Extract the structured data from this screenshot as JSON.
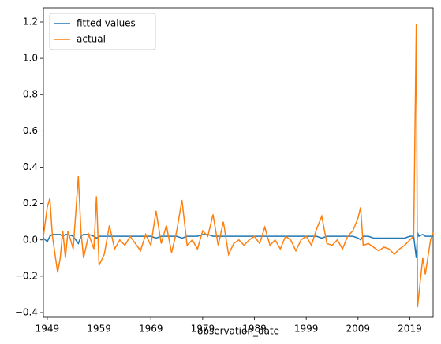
{
  "chart_data": {
    "type": "line",
    "x_label": "observation_date",
    "x": [
      1948.25,
      1949,
      1949.5,
      1950,
      1951,
      1951.5,
      1952,
      1952.5,
      1953,
      1954,
      1955,
      1955.5,
      1956,
      1957,
      1958,
      1958.5,
      1959,
      1960,
      1961,
      1962,
      1963,
      1964,
      1965,
      1966,
      1967,
      1968,
      1969,
      1970,
      1971,
      1972,
      1973,
      1974,
      1975,
      1976,
      1977,
      1978,
      1979,
      1980,
      1981,
      1982,
      1983,
      1984,
      1985,
      1986,
      1987,
      1988,
      1989,
      1990,
      1991,
      1992,
      1993,
      1994,
      1995,
      1996,
      1997,
      1998,
      1999,
      2000,
      2001,
      2002,
      2003,
      2004,
      2005,
      2006,
      2007,
      2008,
      2009,
      2009.5,
      2010,
      2011,
      2012,
      2013,
      2014,
      2015,
      2016,
      2017,
      2018,
      2019,
      2019.75,
      2020.25,
      2020.5,
      2020.75,
      2021.5,
      2022,
      2023,
      2023.5
    ],
    "series": [
      {
        "name": "fitted values",
        "color": "#1f77b4",
        "values": [
          0.01,
          -0.01,
          0.02,
          0.03,
          0.03,
          0.03,
          0.02,
          0.03,
          0.03,
          0.02,
          -0.02,
          0.02,
          0.03,
          0.03,
          0.02,
          0.01,
          0.02,
          0.02,
          0.02,
          0.02,
          0.02,
          0.02,
          0.02,
          0.02,
          0.02,
          0.02,
          0.02,
          0.01,
          0.02,
          0.02,
          0.02,
          0.02,
          0.01,
          0.02,
          0.02,
          0.02,
          0.03,
          0.03,
          0.02,
          0.02,
          0.02,
          0.02,
          0.02,
          0.02,
          0.02,
          0.02,
          0.02,
          0.02,
          0.02,
          0.02,
          0.02,
          0.02,
          0.02,
          0.02,
          0.02,
          0.02,
          0.02,
          0.02,
          0.02,
          0.01,
          0.02,
          0.02,
          0.02,
          0.02,
          0.02,
          0.02,
          0.01,
          0.0,
          0.02,
          0.02,
          0.01,
          0.01,
          0.01,
          0.01,
          0.01,
          0.01,
          0.01,
          0.02,
          0.02,
          -0.1,
          0.04,
          0.02,
          0.03,
          0.02,
          0.02,
          0.02
        ]
      },
      {
        "name": "actual",
        "color": "#ff7f0e",
        "values": [
          0.02,
          0.18,
          0.23,
          0.02,
          -0.18,
          -0.1,
          0.05,
          -0.1,
          0.05,
          -0.05,
          0.35,
          0.05,
          -0.1,
          0.03,
          -0.05,
          0.24,
          -0.14,
          -0.08,
          0.08,
          -0.05,
          0.0,
          -0.03,
          0.02,
          -0.02,
          -0.06,
          0.03,
          -0.03,
          0.16,
          -0.02,
          0.08,
          -0.07,
          0.05,
          0.22,
          -0.03,
          0.0,
          -0.05,
          0.05,
          0.02,
          0.14,
          -0.03,
          0.1,
          -0.08,
          -0.02,
          0.0,
          -0.03,
          0.0,
          0.02,
          -0.02,
          0.07,
          -0.03,
          0.0,
          -0.05,
          0.02,
          0.0,
          -0.06,
          0.0,
          0.02,
          -0.03,
          0.06,
          0.13,
          -0.02,
          -0.03,
          0.0,
          -0.05,
          0.02,
          0.05,
          0.12,
          0.18,
          -0.03,
          -0.02,
          -0.04,
          -0.06,
          -0.04,
          -0.05,
          -0.08,
          -0.05,
          -0.03,
          0.0,
          0.02,
          1.19,
          -0.37,
          -0.3,
          -0.1,
          -0.19,
          0.0,
          0.04
        ]
      }
    ],
    "xlim": [
      1948.25,
      2023.5
    ],
    "xticks": [
      1949,
      1959,
      1969,
      1979,
      1989,
      1999,
      2009,
      2019
    ],
    "ylim": [
      -0.426,
      1.278
    ],
    "yticks": [
      {
        "value": -0.4,
        "label": "−0.4"
      },
      {
        "value": -0.2,
        "label": "−0.2"
      },
      {
        "value": 0,
        "label": "0.0"
      },
      {
        "value": 0.2,
        "label": "0.2"
      },
      {
        "value": 0.4,
        "label": "0.4"
      },
      {
        "value": 0.6,
        "label": "0.6"
      },
      {
        "value": 0.8,
        "label": "0.8"
      },
      {
        "value": 1.0,
        "label": "1.0"
      },
      {
        "value": 1.2,
        "label": "1.2"
      }
    ],
    "legend": "upper left"
  }
}
